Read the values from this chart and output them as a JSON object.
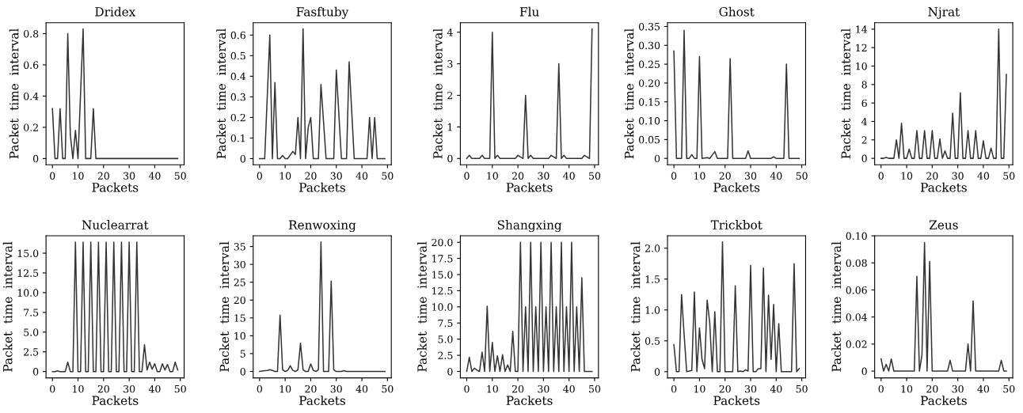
{
  "chart_data": [
    {
      "type": "line",
      "title": "Dridex",
      "xlabel": "Packets",
      "ylabel": "Packet  time  interval",
      "color": "#333333",
      "xlim": [
        -2.5,
        51.5
      ],
      "ylim": [
        -0.04,
        0.87
      ],
      "xticks": [
        0,
        10,
        20,
        30,
        40,
        50
      ],
      "yticks": [
        0,
        0.2,
        0.4,
        0.6,
        0.8
      ],
      "x": [
        0,
        1,
        2,
        3,
        4,
        5,
        6,
        7,
        8,
        9,
        10,
        12,
        13,
        15,
        16,
        17,
        49
      ],
      "values": [
        0.32,
        0,
        0,
        0.32,
        0,
        0,
        0.8,
        0.15,
        0,
        0.18,
        0,
        0.83,
        0,
        0,
        0.32,
        0,
        0
      ]
    },
    {
      "type": "line",
      "title": "Fasftuby",
      "xlabel": "Packets",
      "ylabel": "Packet  time  interval",
      "color": "#333333",
      "xlim": [
        -2.5,
        51.5
      ],
      "ylim": [
        -0.03,
        0.66
      ],
      "xticks": [
        0,
        10,
        20,
        30,
        40,
        50
      ],
      "yticks": [
        0,
        0.1,
        0.2,
        0.3,
        0.4,
        0.5,
        0.6
      ],
      "x": [
        0,
        2,
        4,
        5,
        6,
        7,
        8,
        9,
        10,
        11,
        13,
        14,
        15,
        16,
        17,
        18,
        19,
        20,
        21,
        23,
        24,
        26,
        29,
        30,
        32,
        34,
        35,
        37,
        42,
        43,
        44,
        45,
        46,
        49
      ],
      "values": [
        0,
        0,
        0.6,
        0,
        0.37,
        0,
        0,
        0.015,
        0,
        0,
        0.035,
        0.02,
        0.2,
        0,
        0.63,
        0,
        0.15,
        0.2,
        0,
        0,
        0.36,
        0,
        0,
        0.43,
        0,
        0,
        0.47,
        0,
        0,
        0.2,
        0,
        0.2,
        0,
        0
      ]
    },
    {
      "type": "line",
      "title": "Flu",
      "xlabel": "Packets",
      "ylabel": "Packet  time  interval",
      "color": "#333333",
      "xlim": [
        -2.5,
        51.5
      ],
      "ylim": [
        -0.2,
        4.3
      ],
      "xticks": [
        0,
        10,
        20,
        30,
        40,
        50
      ],
      "yticks": [
        0,
        1,
        2,
        3,
        4
      ],
      "x": [
        0,
        1,
        2,
        5,
        6,
        7,
        9,
        10,
        11,
        12,
        13,
        19,
        20,
        22,
        23,
        24,
        25,
        26,
        32,
        33,
        35,
        36,
        37,
        38,
        39,
        45,
        46,
        48,
        49
      ],
      "values": [
        0,
        0.1,
        0,
        0,
        0.1,
        0,
        0,
        4.0,
        0,
        0.1,
        0,
        0,
        0.1,
        0,
        2.0,
        0,
        0.1,
        0,
        0,
        0.1,
        0,
        3.0,
        0,
        0.1,
        0,
        0,
        0.1,
        0,
        4.1
      ]
    },
    {
      "type": "line",
      "title": "Ghost",
      "xlabel": "Packets",
      "ylabel": "Packet  time  interval",
      "color": "#333333",
      "xlim": [
        -2.5,
        51.5
      ],
      "ylim": [
        -0.017,
        0.36
      ],
      "xticks": [
        0,
        10,
        20,
        30,
        40,
        50
      ],
      "yticks": [
        0,
        {
          "value": 0.05,
          "label": "0.05"
        },
        {
          "value": 0.1,
          "label": "0.10"
        },
        {
          "value": 0.15,
          "label": "0.15"
        },
        {
          "value": 0.2,
          "label": "0.20"
        },
        {
          "value": 0.25,
          "label": "0.25"
        },
        {
          "value": 0.3,
          "label": "0.30"
        },
        {
          "value": 0.35,
          "label": "0.35"
        }
      ],
      "x": [
        0,
        1,
        3,
        4,
        5,
        6,
        7,
        8,
        9,
        10,
        11,
        13,
        14,
        16,
        17,
        21,
        22,
        23,
        28,
        29,
        30,
        38,
        39,
        40,
        43,
        44,
        45,
        49
      ],
      "values": [
        0.285,
        0,
        0,
        0.34,
        0,
        0,
        0.01,
        0,
        0,
        0.27,
        0,
        0.002,
        0,
        0.018,
        0,
        0,
        0.265,
        0,
        0,
        0.02,
        0,
        0,
        0.004,
        0,
        0,
        0.25,
        0,
        0
      ]
    },
    {
      "type": "line",
      "title": "Njrat",
      "xlabel": "Packets",
      "ylabel": "Packet  time  interval",
      "color": "#333333",
      "xlim": [
        -2.5,
        51.5
      ],
      "ylim": [
        -0.7,
        14.7
      ],
      "xticks": [
        0,
        10,
        20,
        30,
        40,
        50
      ],
      "yticks": [
        0,
        2,
        4,
        6,
        8,
        10,
        12,
        14
      ],
      "x": [
        0,
        1,
        2,
        3,
        4,
        5,
        6,
        7,
        8,
        9,
        10,
        11,
        12,
        13,
        14,
        15,
        16,
        17,
        18,
        19,
        20,
        21,
        22,
        23,
        24,
        25,
        26,
        27,
        28,
        29,
        30,
        31,
        32,
        33,
        34,
        35,
        36,
        37,
        38,
        39,
        40,
        41,
        42,
        43,
        44,
        45,
        46,
        47,
        48,
        49
      ],
      "values": [
        0,
        0,
        0.1,
        0,
        0,
        0,
        2,
        0,
        3.8,
        0,
        0,
        1.0,
        0,
        0,
        3,
        0,
        0,
        3,
        0,
        0,
        3,
        0,
        0,
        2.1,
        0,
        0.8,
        0,
        0,
        4.9,
        0,
        0,
        7.1,
        0,
        0,
        3,
        0,
        0,
        3,
        0,
        0,
        1.9,
        0,
        0,
        1.1,
        0,
        0,
        14,
        0,
        0,
        9.1
      ]
    },
    {
      "type": "line",
      "title": "Nuclearrat",
      "xlabel": "Packets",
      "ylabel": "Packet  time  interval",
      "color": "#333333",
      "xlim": [
        -2.5,
        51.5
      ],
      "ylim": [
        -0.8,
        17.2
      ],
      "xticks": [
        0,
        10,
        20,
        30,
        40,
        50
      ],
      "yticks": [
        0,
        {
          "value": 2.5,
          "label": "2.5"
        },
        {
          "value": 5,
          "label": "5.0"
        },
        {
          "value": 7.5,
          "label": "7.5"
        },
        {
          "value": 10,
          "label": "10.0"
        },
        {
          "value": 12.5,
          "label": "12.5"
        },
        {
          "value": 15,
          "label": "15.0"
        }
      ],
      "x": [
        0,
        1,
        2,
        3,
        5,
        6,
        7,
        8,
        9,
        10,
        11,
        12,
        13,
        14,
        15,
        16,
        17,
        18,
        19,
        20,
        21,
        22,
        23,
        24,
        25,
        26,
        27,
        28,
        29,
        30,
        31,
        32,
        33,
        34,
        35,
        36,
        37,
        38,
        39,
        40,
        41,
        42,
        43,
        44,
        45,
        46,
        47,
        48,
        49
      ],
      "values": [
        0,
        0,
        0.1,
        0,
        0,
        1.2,
        0,
        0,
        16.4,
        0,
        0,
        16.4,
        0,
        0,
        16.4,
        0,
        0,
        16.4,
        0,
        0,
        16.4,
        0,
        0,
        16.4,
        0,
        0,
        16.4,
        0,
        0,
        16.4,
        0,
        0,
        16.4,
        0,
        0,
        3.4,
        0.2,
        1.2,
        0.3,
        1.0,
        0,
        0,
        1.0,
        0.2,
        0.9,
        0,
        0,
        1.2,
        0.2
      ]
    },
    {
      "type": "line",
      "title": "Renwoxing",
      "xlabel": "Packets",
      "ylabel": "Packet  time  interval",
      "color": "#333333",
      "xlim": [
        -2.5,
        51.5
      ],
      "ylim": [
        -1.8,
        38
      ],
      "xticks": [
        0,
        10,
        20,
        30,
        40,
        50
      ],
      "yticks": [
        0,
        5,
        10,
        15,
        20,
        25,
        30,
        35
      ],
      "x": [
        0,
        2,
        3,
        4,
        5,
        6,
        7,
        8,
        9,
        10,
        11,
        12,
        13,
        14,
        15,
        16,
        17,
        18,
        19,
        20,
        21,
        22,
        23,
        24,
        25,
        26,
        27,
        28,
        29,
        30,
        32,
        33,
        34,
        49
      ],
      "values": [
        0,
        0.2,
        0.3,
        0.5,
        0.3,
        0,
        0,
        15.8,
        0.5,
        0,
        0.3,
        1.6,
        0.3,
        0,
        0.5,
        7.9,
        0.5,
        0,
        0,
        2.1,
        0.3,
        0,
        0.5,
        36.3,
        0,
        0,
        0,
        25.3,
        0.5,
        0,
        0,
        0.2,
        0,
        0
      ]
    },
    {
      "type": "line",
      "title": "Shangxing",
      "xlabel": "Packets",
      "ylabel": "Packet  time  interval",
      "color": "#333333",
      "xlim": [
        -2.5,
        51.5
      ],
      "ylim": [
        -1,
        21
      ],
      "xticks": [
        0,
        10,
        20,
        30,
        40,
        50
      ],
      "yticks": [
        0,
        {
          "value": 2.5,
          "label": "2.5"
        },
        {
          "value": 5,
          "label": "5.0"
        },
        {
          "value": 7.5,
          "label": "7.5"
        },
        {
          "value": 10,
          "label": "10.0"
        },
        {
          "value": 12.5,
          "label": "12.5"
        },
        {
          "value": 15,
          "label": "15.0"
        },
        {
          "value": 17.5,
          "label": "17.5"
        },
        {
          "value": 20,
          "label": "20.0"
        }
      ],
      "x": [
        0,
        1,
        2,
        3,
        4,
        5,
        6,
        7,
        8,
        9,
        10,
        11,
        12,
        13,
        14,
        15,
        16,
        17,
        18,
        19,
        20,
        21,
        22,
        23,
        24,
        25,
        26,
        27,
        28,
        29,
        30,
        31,
        32,
        33,
        34,
        35,
        36,
        37,
        38,
        39,
        40,
        41,
        42,
        43,
        44,
        45,
        46,
        49
      ],
      "values": [
        0,
        2.2,
        0,
        0.5,
        0.2,
        0,
        3,
        0,
        10.1,
        0,
        4.5,
        0,
        2.4,
        0,
        2.6,
        0,
        1,
        0,
        6.2,
        0,
        0,
        20,
        0,
        10,
        0,
        20,
        0,
        10,
        0,
        20,
        0,
        10,
        0,
        20,
        0,
        10,
        0,
        20,
        0,
        10,
        0,
        20,
        0,
        10,
        0,
        14.5,
        0,
        0
      ]
    },
    {
      "type": "line",
      "title": "Trickbot",
      "xlabel": "Packets",
      "ylabel": "Packet  time  interval",
      "color": "#333333",
      "xlim": [
        -2.5,
        51.5
      ],
      "ylim": [
        -0.1,
        2.2
      ],
      "xticks": [
        0,
        10,
        20,
        30,
        40,
        50
      ],
      "yticks": [
        0,
        {
          "value": 0.5,
          "label": "0.5"
        },
        {
          "value": 1,
          "label": "1.0"
        },
        {
          "value": 1.5,
          "label": "1.5"
        },
        {
          "value": 2,
          "label": "2.0"
        }
      ],
      "x": [
        0,
        1,
        2,
        3,
        4,
        5,
        7,
        8,
        9,
        10,
        11,
        12,
        13,
        14,
        15,
        16,
        17,
        18,
        19,
        20,
        23,
        24,
        25,
        26,
        27,
        28,
        29,
        30,
        31,
        32,
        33,
        34,
        35,
        36,
        37,
        38,
        39,
        40,
        41,
        42,
        46,
        47,
        48,
        49
      ],
      "values": [
        0.44,
        0,
        0,
        1.25,
        0.6,
        0,
        0.02,
        1.29,
        0,
        0.71,
        0.2,
        0.05,
        1.16,
        0.8,
        0,
        0.97,
        0,
        0,
        2.1,
        0,
        0,
        1.39,
        0,
        0.01,
        0,
        0.03,
        0.01,
        1.72,
        0,
        0,
        0.05,
        0.05,
        1.68,
        0,
        1.24,
        0.2,
        1.09,
        0,
        0.78,
        0,
        0,
        1.75,
        0,
        0.05
      ]
    },
    {
      "type": "line",
      "title": "Zeus",
      "xlabel": "Packets",
      "ylabel": "Packet  time  interval",
      "color": "#333333",
      "xlim": [
        -2.5,
        51.5
      ],
      "ylim": [
        -0.005,
        0.1
      ],
      "xticks": [
        0,
        10,
        20,
        30,
        40,
        50
      ],
      "yticks": [
        0,
        {
          "value": 0.02,
          "label": "0.02"
        },
        {
          "value": 0.04,
          "label": "0.04"
        },
        {
          "value": 0.06,
          "label": "0.06"
        },
        {
          "value": 0.08,
          "label": "0.08"
        },
        {
          "value": 0.1,
          "label": "0.10"
        }
      ],
      "x": [
        0,
        1,
        2,
        3,
        4,
        5,
        13,
        14,
        15,
        16,
        17,
        18,
        19,
        20,
        26,
        27,
        28,
        33,
        34,
        35,
        36,
        37,
        46,
        47,
        48,
        49
      ],
      "values": [
        0.009,
        0,
        0.005,
        0,
        0.009,
        0,
        0,
        0.07,
        0,
        0.012,
        0.095,
        0,
        0.081,
        0,
        0,
        0.008,
        0,
        0,
        0.02,
        0,
        0.052,
        0,
        0,
        0.008,
        0,
        0
      ]
    }
  ]
}
